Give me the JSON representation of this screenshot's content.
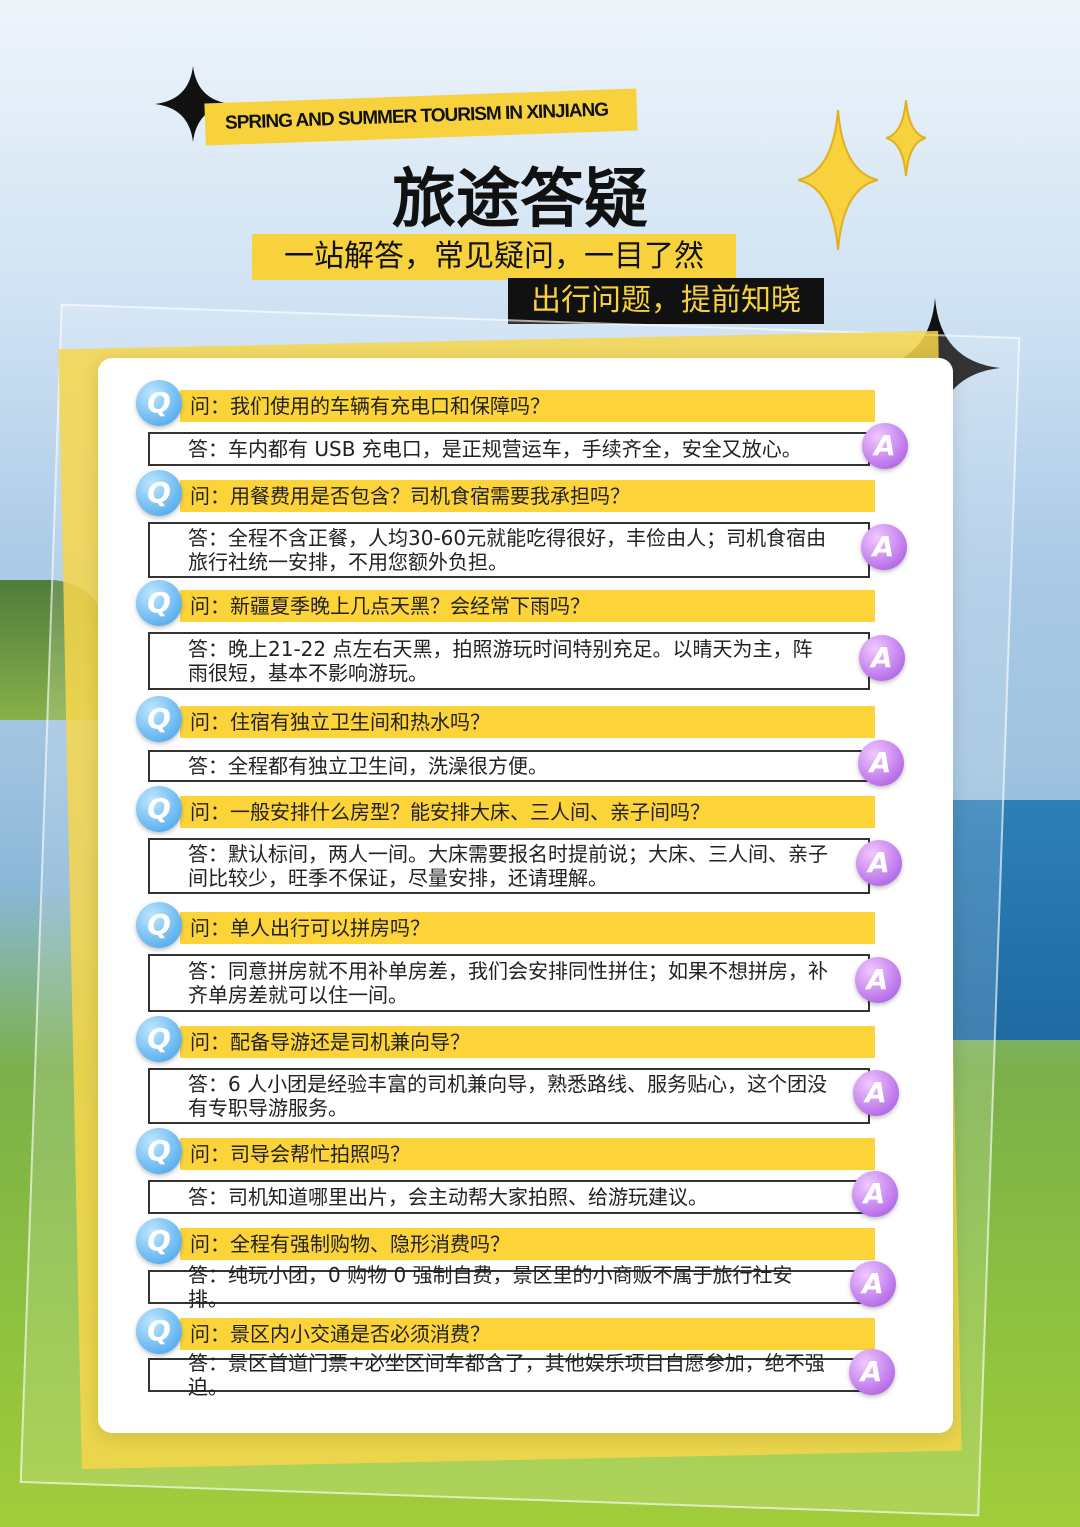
{
  "header": {
    "subtitle_en": "SPRING AND SUMMER TOURISM IN XINJIANG",
    "title": "旅途答疑",
    "tagline_1": "一站解答，常见疑问，一目了然",
    "tagline_2": "出行问题，提前知晓"
  },
  "icons": {
    "question": "Q",
    "answer": "A"
  },
  "colors": {
    "accent_yellow": "#fcd43a",
    "answer_icon": "#a24ee0",
    "question_icon": "#3a9ee8"
  },
  "faq": [
    {
      "q": "问：我们使用的车辆有充电口和保障吗？",
      "a": "答：车内都有 USB 充电口，是正规营运车，手续齐全，安全又放心。"
    },
    {
      "q": "问：用餐费用是否包含？司机食宿需要我承担吗？",
      "a": "答：全程不含正餐，人均30-60元就能吃得很好，丰俭由人；司机食宿由旅行社统一安排，不用您额外负担。"
    },
    {
      "q": "问：新疆夏季晚上几点天黑？会经常下雨吗？",
      "a": "答：晚上21-22 点左右天黑，拍照游玩时间特别充足。以晴天为主，阵雨很短，基本不影响游玩。"
    },
    {
      "q": "问：住宿有独立卫生间和热水吗？",
      "a": "答：全程都有独立卫生间，洗澡很方便。"
    },
    {
      "q": "问：一般安排什么房型？能安排大床、三人间、亲子间吗？",
      "a": "答：默认标间，两人一间。大床需要报名时提前说；大床、三人间、亲子间比较少，旺季不保证，尽量安排，还请理解。"
    },
    {
      "q": "问：单人出行可以拼房吗？",
      "a": "答：同意拼房就不用补单房差，我们会安排同性拼住；如果不想拼房，补齐单房差就可以住一间。"
    },
    {
      "q": "问：配备导游还是司机兼向导？",
      "a": "答：6 人小团是经验丰富的司机兼向导，熟悉路线、服务贴心，这个团没有专职导游服务。"
    },
    {
      "q": "问：司导会帮忙拍照吗？",
      "a": "答：司机知道哪里出片，会主动帮大家拍照、给游玩建议。"
    },
    {
      "q": "问：全程有强制购物、隐形消费吗？",
      "a": "答：纯玩小团，0 购物 0 强制自费，景区里的小商贩不属于旅行社安排。"
    },
    {
      "q": "问：景区内小交通是否必须消费？",
      "a": "答：景区首道门票+必坐区间车都含了，其他娱乐项目自愿参加，绝不强迫。"
    }
  ]
}
